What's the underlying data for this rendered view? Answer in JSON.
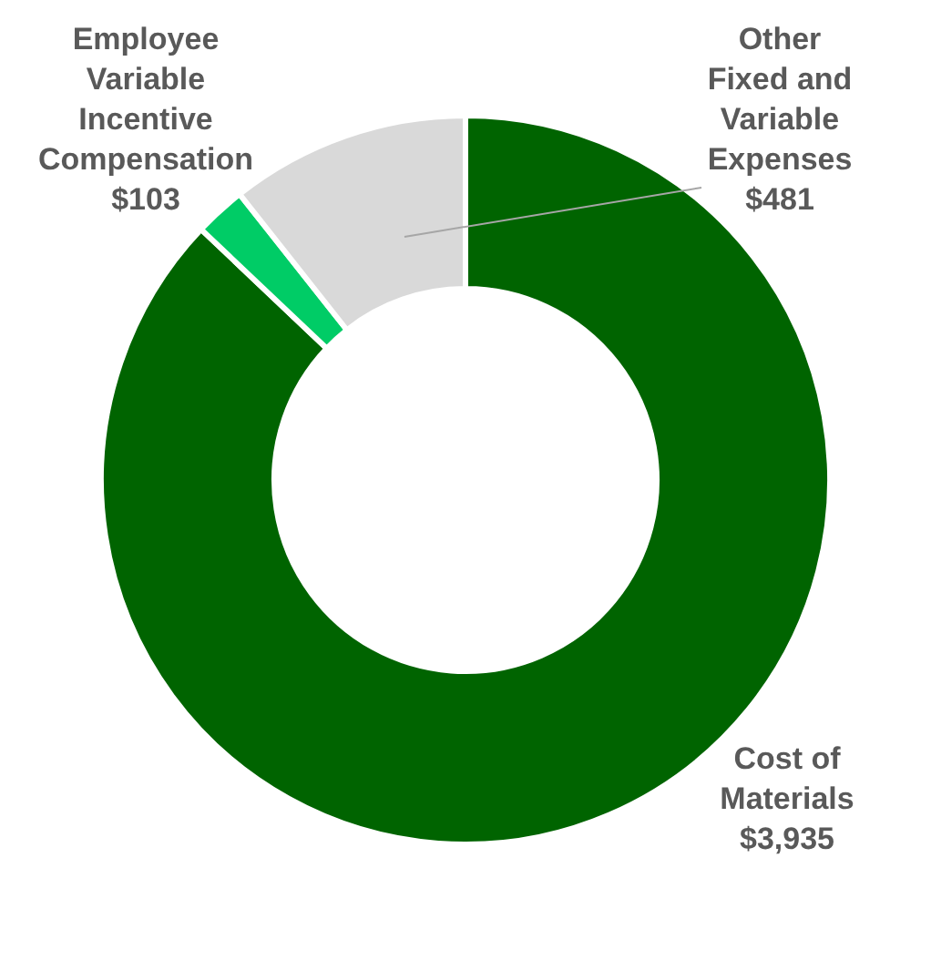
{
  "chart_data": {
    "type": "donut",
    "categories": [
      "Cost of Materials",
      "Employee Variable Incentive Compensation",
      "Other Fixed and Variable Expenses"
    ],
    "values": [
      3935,
      103,
      481
    ],
    "value_labels": [
      "$3,935",
      "$103",
      "$481"
    ],
    "colors": [
      "#006400",
      "#00cc66",
      "#d9d9d9"
    ]
  }
}
